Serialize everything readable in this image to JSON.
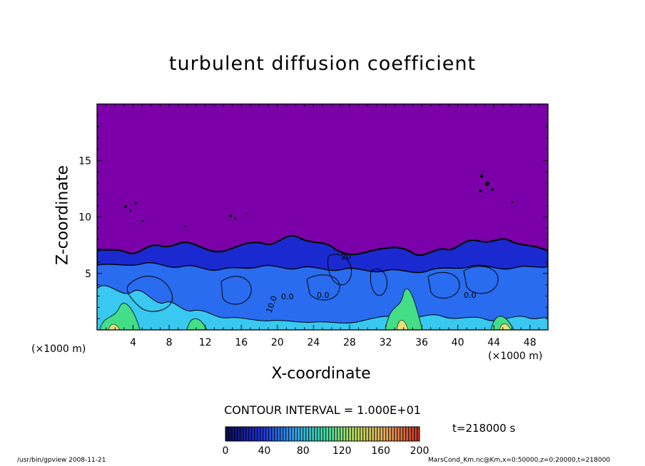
{
  "chart_data": {
    "type": "heatmap",
    "title": "turbulent diffusion coefficient",
    "xlabel": "X-coordinate",
    "ylabel": "Z-coordinate",
    "x_unit_left": "(×1000 m)",
    "x_unit_right": "(×1000 m)",
    "xlim": [
      0,
      50
    ],
    "ylim": [
      0,
      20
    ],
    "x_ticks": [
      "4",
      "8",
      "12",
      "16",
      "20",
      "24",
      "28",
      "32",
      "36",
      "40",
      "44",
      "48"
    ],
    "y_ticks": [
      "5",
      "10",
      "15"
    ],
    "contour_interval": "CONTOUR INTERVAL = 1.000E+01",
    "contour_labels": [
      "20",
      "0.0",
      "0.0",
      "10.0",
      "0.0"
    ],
    "colorbar": {
      "min": 0,
      "max": 200,
      "ticks": [
        "0",
        "40",
        "80",
        "120",
        "160",
        "200"
      ]
    },
    "time_label": "t=218000 s",
    "footer_left": "/usr/bin/gpview   2008-11-21",
    "footer_right": "MarsCond_Km.nc@Km,x=0:50000,z=0:20000,t=218000",
    "colors": {
      "background_field": "#7b00aa",
      "low": "#1a1a8c",
      "mid_blue": "#2a6cf0",
      "cyan": "#33ddee",
      "green": "#44dd77",
      "yellow": "#e8e07a",
      "red": "#cc2a20"
    }
  }
}
